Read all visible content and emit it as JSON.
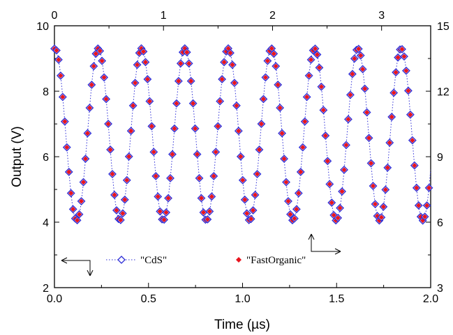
{
  "chart_data": {
    "type": "scatter",
    "xlabel": "Time (µs)",
    "ylabel": "Output (V)",
    "xlim": [
      0,
      2.0
    ],
    "ylim": [
      2,
      10
    ],
    "x_ticks": [
      "0.0",
      "0.5",
      "1.0",
      "1.5",
      "2.0"
    ],
    "y_ticks": [
      "2",
      "4",
      "6",
      "8",
      "10"
    ],
    "top_axis": {
      "lim": [
        0,
        3.45
      ],
      "ticks": [
        "0",
        "1",
        "2",
        "3"
      ]
    },
    "right_axis": {
      "lim": [
        3,
        15
      ],
      "ticks": [
        "3",
        "6",
        "9",
        "12",
        "15"
      ]
    },
    "grid": false,
    "signal": {
      "period_us": 0.23,
      "peak_time_us": 0.233,
      "center_v": 6.68,
      "amplitude_v": 2.63
    },
    "series": [
      {
        "name": "\"CdS\"",
        "marker": "hollow-diamond",
        "color": "#2b2bd6",
        "line": "dotted",
        "axis": "left-bottom"
      },
      {
        "name": "\"FastOrganic\"",
        "marker": "filled-diamond",
        "color": "#e8141e",
        "axis": "right-top"
      }
    ],
    "legend": {
      "placement": "bottom-left"
    }
  }
}
